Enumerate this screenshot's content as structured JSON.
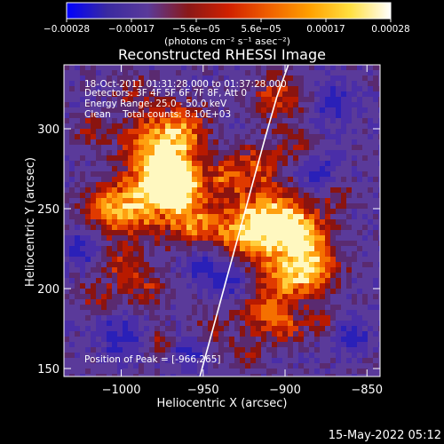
{
  "chart_data": {
    "type": "heatmap",
    "title": "Reconstructed RHESSI Image",
    "info_lines": [
      "18-Oct-2011 01:31:28.000 to 01:37:28.000",
      "Detectors: 3F 4F 5F 6F 7F 8F, Att 0",
      "Energy Range: 25.0 - 50.0 keV",
      "Clean    Total counts: 8.10E+03"
    ],
    "peak_text": "Position of Peak = [-966,265]",
    "peak_position": [
      -966,
      265
    ],
    "xlabel": "Heliocentric X (arcsec)",
    "ylabel": "Heliocentric Y (arcsec)",
    "xlim": [
      -1035,
      -842
    ],
    "ylim": [
      145,
      340
    ],
    "x_ticks": [
      -1000,
      -950,
      -900,
      -850
    ],
    "x_tick_labels": [
      "−1000",
      "−950",
      "−900",
      "−850"
    ],
    "y_ticks": [
      150,
      200,
      250,
      300
    ],
    "y_tick_labels": [
      "150",
      "200",
      "250",
      "300"
    ],
    "colorbar": {
      "unit_label": "(photons cm⁻² s⁻¹ asec⁻²)",
      "range": [
        -0.00028,
        0.00028
      ],
      "tick_labels": [
        "−0.00028",
        "−0.00017",
        "−5.6e−05",
        "5.6e−05",
        "0.00017",
        "0.00028"
      ],
      "colors": [
        "#0000ff",
        "#3a2aa0",
        "#5a3a9a",
        "#8a1818",
        "#d02000",
        "#f06000",
        "#ffa000",
        "#ffe040",
        "#ffffff"
      ]
    },
    "limb_line": {
      "color": "#ffffff"
    },
    "background_color": "#5a3a9a"
  },
  "footer": {
    "timestamp": "15-May-2022 05:12"
  }
}
